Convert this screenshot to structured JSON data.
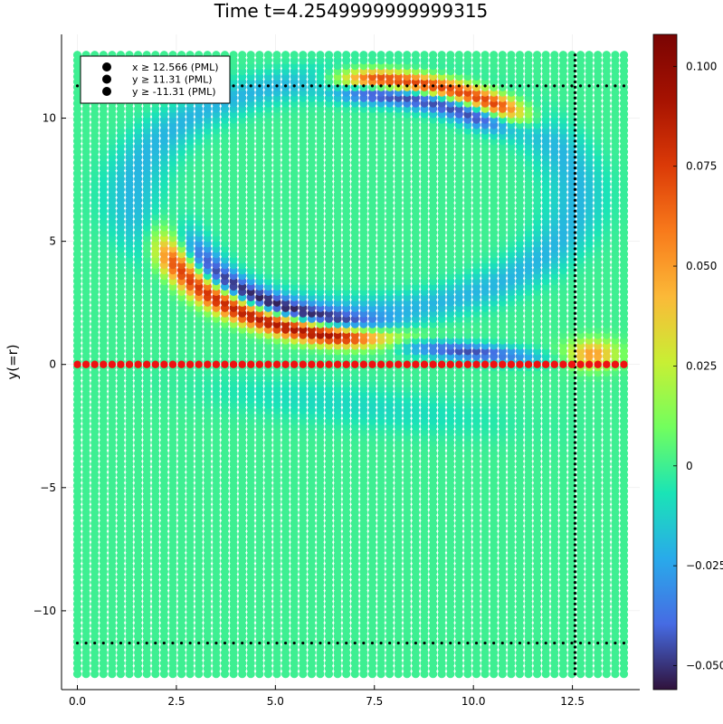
{
  "chart_data": {
    "type": "scatter",
    "title": "Time t=4.2549999999999315",
    "xlabel": "",
    "ylabel": "y(=r)",
    "xlim": [
      -0.4,
      14.2
    ],
    "ylim": [
      -13.2,
      13.4
    ],
    "x_ticks": [
      {
        "value": 0.0,
        "label": "0.0"
      },
      {
        "value": 2.5,
        "label": "2.5"
      },
      {
        "value": 5.0,
        "label": "5.0"
      },
      {
        "value": 7.5,
        "label": "7.5"
      },
      {
        "value": 10.0,
        "label": "10.0"
      },
      {
        "value": 12.5,
        "label": "12.5"
      }
    ],
    "y_ticks": [
      {
        "value": 10,
        "label": "10"
      },
      {
        "value": 5,
        "label": "5"
      },
      {
        "value": 0,
        "label": "0"
      },
      {
        "value": -5,
        "label": "−5"
      },
      {
        "value": -10,
        "label": "−10"
      }
    ],
    "grid": true,
    "legend_position": "top-left",
    "colormap": "turbo",
    "colorbar": {
      "range": [
        -0.056,
        0.108
      ],
      "ticks": [
        {
          "value": 0.1,
          "label": "0.100"
        },
        {
          "value": 0.075,
          "label": "0.075"
        },
        {
          "value": 0.05,
          "label": "0.050"
        },
        {
          "value": 0.025,
          "label": "0.025"
        },
        {
          "value": 0.0,
          "label": "0"
        },
        {
          "value": -0.025,
          "label": "−0.025"
        },
        {
          "value": -0.05,
          "label": "−0.050"
        }
      ]
    },
    "grid_domain": {
      "x": [
        0,
        13.8
      ],
      "y": [
        -12.566,
        12.566
      ],
      "nx": 64,
      "ny": 116
    },
    "field_features": [
      {
        "kind": "ellipse",
        "cx": 7.0,
        "cy": 6.9,
        "rx": 5.6,
        "ry": 4.7,
        "amplitude": -0.02,
        "width": 0.45
      },
      {
        "kind": "arc",
        "cx": 7.7,
        "cy": 6.0,
        "rx": 5.6,
        "ry": 4.9,
        "theta_start": 195,
        "theta_end": 265,
        "amplitude": 0.1,
        "width": 0.3,
        "inner_offset": 0.55,
        "inner_amplitude": -0.045
      },
      {
        "kind": "arc",
        "cx": 7.0,
        "cy": 6.9,
        "rx": 5.6,
        "ry": 4.7,
        "theta_start": 45,
        "theta_end": 90,
        "amplitude": 0.1,
        "width": 0.3,
        "inner_offset": 0.55,
        "inner_amplitude": -0.05
      },
      {
        "kind": "band",
        "x0": 7.5,
        "y0": 0.9,
        "x1": 12.2,
        "y1": 0.2,
        "amplitude": -0.045,
        "width": 0.25
      },
      {
        "kind": "blob",
        "cx": 13.0,
        "cy": 0.45,
        "sx": 0.45,
        "sy": 0.4,
        "amplitude": 0.05
      },
      {
        "kind": "band",
        "x0": 2.0,
        "y0": -0.7,
        "x1": 12.0,
        "y1": -2.6,
        "amplitude": -0.01,
        "width": 0.6
      }
    ],
    "series": [
      {
        "name": "x ≥ 12.566 (PML)",
        "kind": "vline",
        "value": 12.566,
        "color": "#000000"
      },
      {
        "name": "y ≥ 11.31 (PML)",
        "kind": "hline",
        "value": 11.31,
        "color": "#000000"
      },
      {
        "name": "y ≥ -11.31 (PML)",
        "kind": "hline",
        "value": -11.31,
        "color": "#000000"
      }
    ],
    "axis_points": {
      "y": 0,
      "x": [
        0,
        13.8
      ],
      "color": "#ee1111"
    }
  }
}
